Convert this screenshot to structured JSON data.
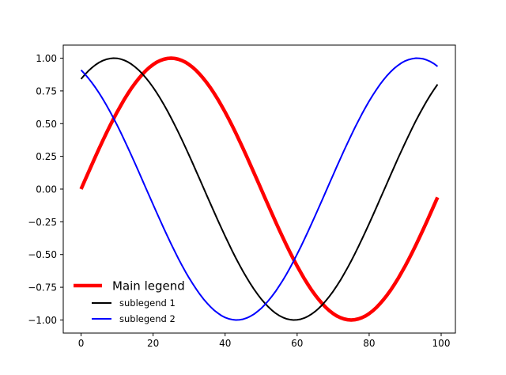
{
  "chart_data": {
    "type": "line",
    "x_domain": [
      0,
      99
    ],
    "xlim": [
      -4.95,
      103.95
    ],
    "ylim": [
      -1.1,
      1.1
    ],
    "xticks": [
      0,
      20,
      40,
      60,
      80,
      100
    ],
    "xtick_labels": [
      "0",
      "20",
      "40",
      "60",
      "80",
      "100"
    ],
    "yticks": [
      -1.0,
      -0.75,
      -0.5,
      -0.25,
      0.0,
      0.25,
      0.5,
      0.75,
      1.0
    ],
    "ytick_labels": [
      "−1.00",
      "−0.75",
      "−0.50",
      "−0.25",
      "0.00",
      "0.25",
      "0.50",
      "0.75",
      "1.00"
    ],
    "grid": false,
    "legend_position": "lower-left",
    "series": [
      {
        "name": "Main legend",
        "color": "#ff0000",
        "values": [
          0.0,
          0.063,
          0.125,
          0.187,
          0.249,
          0.309,
          0.368,
          0.426,
          0.482,
          0.536,
          0.588,
          0.637,
          0.685,
          0.729,
          0.771,
          0.809,
          0.844,
          0.876,
          0.905,
          0.93,
          0.951,
          0.969,
          0.982,
          0.992,
          0.998,
          1.0,
          0.998,
          0.992,
          0.982,
          0.969,
          0.951,
          0.93,
          0.905,
          0.876,
          0.844,
          0.809,
          0.771,
          0.729,
          0.685,
          0.637,
          0.588,
          0.536,
          0.482,
          0.426,
          0.368,
          0.309,
          0.249,
          0.187,
          0.125,
          0.063,
          0.0,
          -0.063,
          -0.125,
          -0.187,
          -0.249,
          -0.309,
          -0.368,
          -0.426,
          -0.482,
          -0.536,
          -0.588,
          -0.637,
          -0.685,
          -0.729,
          -0.771,
          -0.809,
          -0.844,
          -0.876,
          -0.905,
          -0.93,
          -0.951,
          -0.969,
          -0.982,
          -0.992,
          -0.998,
          -1.0,
          -0.998,
          -0.992,
          -0.982,
          -0.969,
          -0.951,
          -0.93,
          -0.905,
          -0.876,
          -0.844,
          -0.809,
          -0.771,
          -0.729,
          -0.685,
          -0.637,
          -0.588,
          -0.536,
          -0.482,
          -0.426,
          -0.368,
          -0.309,
          -0.249,
          -0.187,
          -0.125,
          -0.063
        ]
      },
      {
        "name": "sublegend 1",
        "color": "#000000",
        "values": [
          0.841,
          0.873,
          0.902,
          0.927,
          0.949,
          0.967,
          0.981,
          0.991,
          0.997,
          1.0,
          0.999,
          0.993,
          0.984,
          0.971,
          0.954,
          0.933,
          0.909,
          0.881,
          0.849,
          0.815,
          0.777,
          0.736,
          0.692,
          0.645,
          0.596,
          0.544,
          0.49,
          0.435,
          0.377,
          0.318,
          0.258,
          0.197,
          0.134,
          0.072,
          0.009,
          -0.054,
          -0.116,
          -0.178,
          -0.24,
          -0.3,
          -0.359,
          -0.417,
          -0.474,
          -0.528,
          -0.58,
          -0.63,
          -0.677,
          -0.722,
          -0.764,
          -0.803,
          -0.839,
          -0.871,
          -0.9,
          -0.926,
          -0.948,
          -0.966,
          -0.98,
          -0.991,
          -0.997,
          -1.0,
          -0.999,
          -0.994,
          -0.985,
          -0.972,
          -0.955,
          -0.935,
          -0.911,
          -0.884,
          -0.852,
          -0.818,
          -0.781,
          -0.74,
          -0.697,
          -0.65,
          -0.601,
          -0.55,
          -0.496,
          -0.44,
          -0.383,
          -0.324,
          -0.264,
          -0.203,
          -0.141,
          -0.078,
          -0.016,
          0.047,
          0.11,
          0.172,
          0.234,
          0.294,
          0.353,
          0.411,
          0.468,
          0.523,
          0.575,
          0.625,
          0.673,
          0.718,
          0.76,
          0.8
        ]
      },
      {
        "name": "sublegend 2",
        "color": "#0000ff",
        "values": [
          0.909,
          0.88,
          0.848,
          0.813,
          0.775,
          0.734,
          0.69,
          0.643,
          0.594,
          0.542,
          0.489,
          0.433,
          0.375,
          0.316,
          0.256,
          0.195,
          0.133,
          0.07,
          0.007,
          -0.055,
          -0.118,
          -0.18,
          -0.241,
          -0.302,
          -0.361,
          -0.419,
          -0.475,
          -0.53,
          -0.582,
          -0.632,
          -0.679,
          -0.723,
          -0.765,
          -0.804,
          -0.84,
          -0.872,
          -0.901,
          -0.927,
          -0.948,
          -0.967,
          -0.981,
          -0.991,
          -0.997,
          -1.0,
          -0.999,
          -0.994,
          -0.985,
          -0.972,
          -0.956,
          -0.935,
          -0.912,
          -0.884,
          -0.853,
          -0.819,
          -0.782,
          -0.741,
          -0.698,
          -0.652,
          -0.603,
          -0.551,
          -0.497,
          -0.442,
          -0.384,
          -0.325,
          -0.265,
          -0.204,
          -0.142,
          -0.08,
          -0.017,
          0.046,
          0.108,
          0.171,
          0.232,
          0.293,
          0.352,
          0.41,
          0.467,
          0.521,
          0.574,
          0.624,
          0.672,
          0.717,
          0.759,
          0.799,
          0.835,
          0.868,
          0.897,
          0.923,
          0.945,
          0.964,
          0.979,
          0.989,
          0.996,
          1.0,
          0.999,
          0.995,
          0.986,
          0.974,
          0.958,
          0.937
        ]
      }
    ]
  }
}
